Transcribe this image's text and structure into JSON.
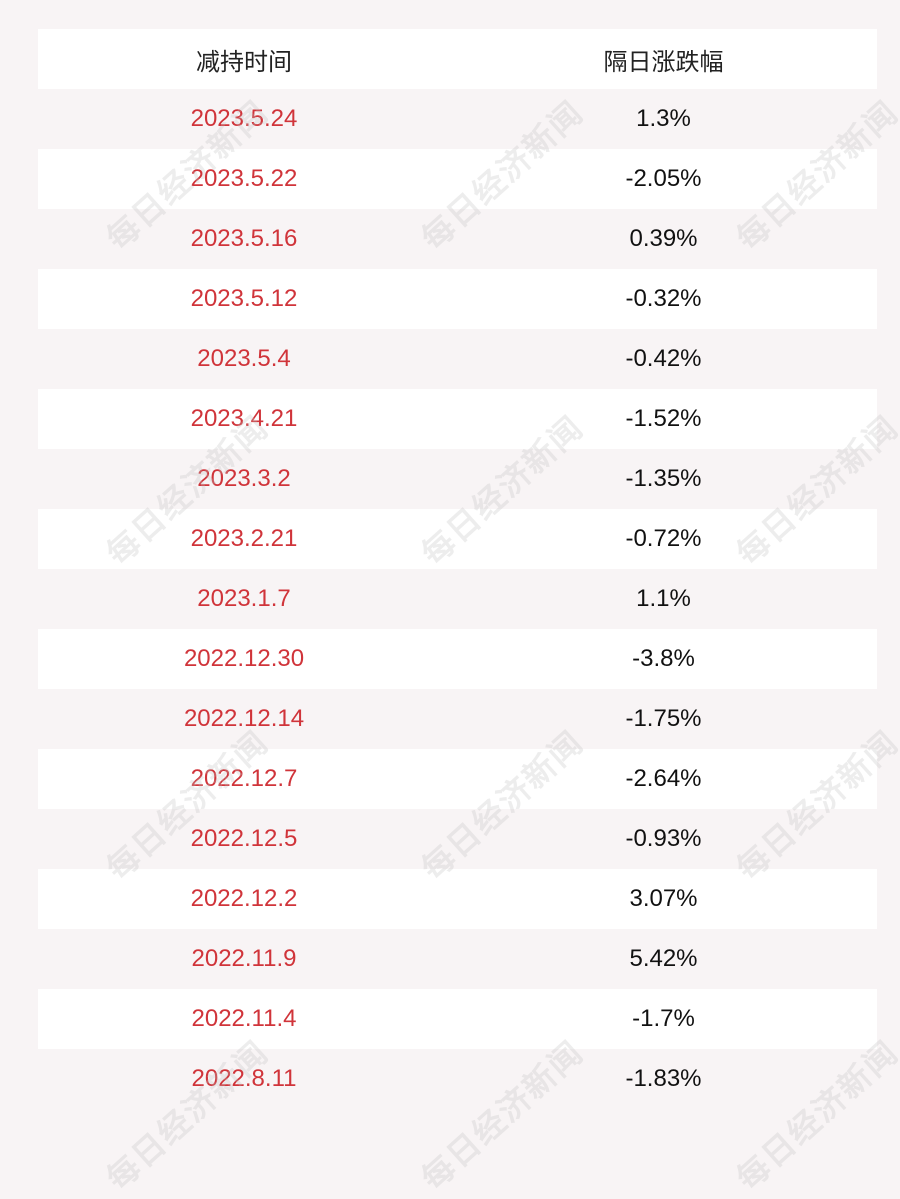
{
  "table": {
    "headers": [
      "减持时间",
      "隔日涨跌幅"
    ],
    "rows": [
      {
        "date": "2023.5.24",
        "change": "1.3%"
      },
      {
        "date": "2023.5.22",
        "change": "-2.05%"
      },
      {
        "date": "2023.5.16",
        "change": "0.39%"
      },
      {
        "date": "2023.5.12",
        "change": "-0.32%"
      },
      {
        "date": "2023.5.4",
        "change": "-0.42%"
      },
      {
        "date": "2023.4.21",
        "change": "-1.52%"
      },
      {
        "date": "2023.3.2",
        "change": "-1.35%"
      },
      {
        "date": "2023.2.21",
        "change": "-0.72%"
      },
      {
        "date": "2023.1.7",
        "change": "1.1%"
      },
      {
        "date": "2022.12.30",
        "change": "-3.8%"
      },
      {
        "date": "2022.12.14",
        "change": "-1.75%"
      },
      {
        "date": "2022.12.7",
        "change": "-2.64%"
      },
      {
        "date": "2022.12.5",
        "change": "-0.93%"
      },
      {
        "date": "2022.12.2",
        "change": "3.07%"
      },
      {
        "date": "2022.11.9",
        "change": "5.42%"
      },
      {
        "date": "2022.11.4",
        "change": "-1.7%"
      },
      {
        "date": "2022.8.11",
        "change": "-1.83%"
      }
    ]
  },
  "watermark": "每日经济新闻",
  "colors": {
    "date_text": "#d0343a",
    "value_text": "#111111",
    "row_white": "#ffffff",
    "row_pink": "#f8f4f5"
  }
}
